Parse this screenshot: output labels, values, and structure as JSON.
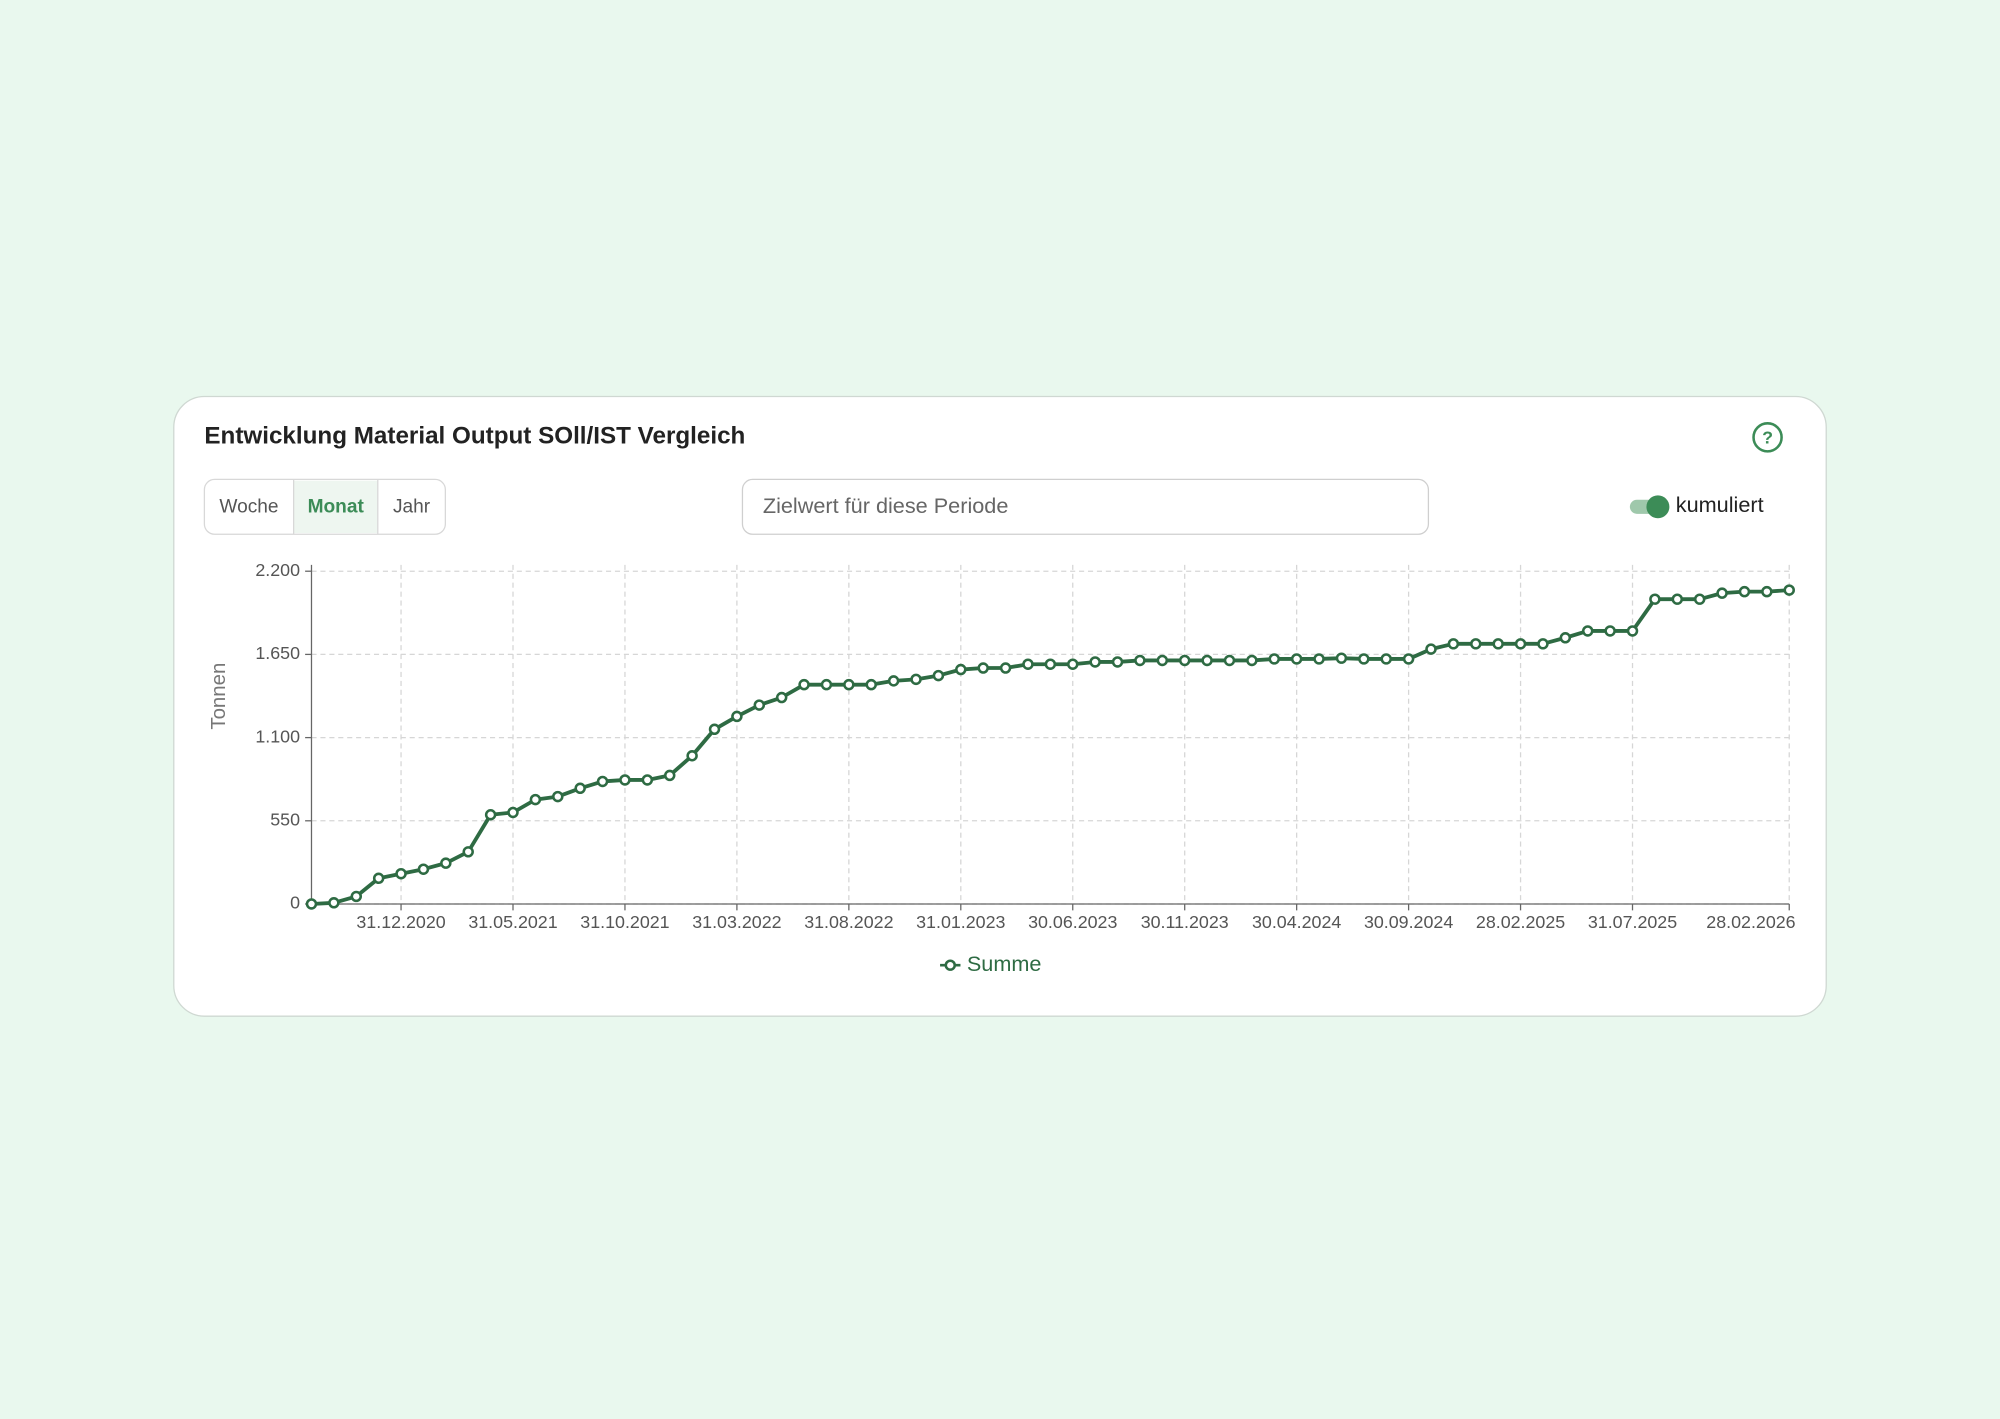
{
  "header": {
    "title": "Entwicklung Material Output SOll/IST Vergleich"
  },
  "period_buttons": {
    "items": [
      "Woche",
      "Monat",
      "Jahr"
    ],
    "active": 1
  },
  "target_input": {
    "placeholder": "Zielwert für diese Periode"
  },
  "toggle": {
    "label": "kumuliert",
    "on": true
  },
  "chart_data": {
    "type": "line",
    "ylabel": "Tonnen",
    "categories": [
      null,
      null,
      null,
      null,
      "31.12.2020",
      null,
      null,
      null,
      null,
      "31.05.2021",
      null,
      null,
      null,
      null,
      "31.10.2021",
      null,
      null,
      null,
      null,
      "31.03.2022",
      null,
      null,
      null,
      null,
      "31.08.2022",
      null,
      null,
      null,
      null,
      "31.01.2023",
      null,
      null,
      null,
      null,
      "30.06.2023",
      null,
      null,
      null,
      null,
      "30.11.2023",
      null,
      null,
      null,
      null,
      "30.04.2024",
      null,
      null,
      null,
      null,
      "30.09.2024",
      null,
      null,
      null,
      null,
      "28.02.2025",
      null,
      null,
      null,
      null,
      "31.07.2025",
      null,
      null,
      null,
      null,
      null,
      null,
      "28.02.2026"
    ],
    "series": [
      {
        "name": "Summe",
        "color": "#2e6b43",
        "values": [
          0,
          8,
          50,
          170,
          200,
          230,
          270,
          345,
          590,
          605,
          690,
          710,
          765,
          810,
          820,
          820,
          850,
          980,
          1155,
          1240,
          1315,
          1365,
          1450,
          1450,
          1450,
          1450,
          1475,
          1485,
          1510,
          1550,
          1560,
          1560,
          1585,
          1585,
          1585,
          1600,
          1600,
          1610,
          1610,
          1610,
          1610,
          1610,
          1610,
          1620,
          1620,
          1620,
          1625,
          1620,
          1620,
          1620,
          1685,
          1720,
          1720,
          1720,
          1720,
          1720,
          1760,
          1805,
          1805,
          1805,
          2015,
          2015,
          2015,
          2055,
          2065,
          2065,
          2075
        ]
      }
    ],
    "ylim": [
      0,
      2200
    ],
    "yticks": [
      0,
      550,
      {
        "value": 1100,
        "label": "1.100"
      },
      {
        "value": 1650,
        "label": "1.650"
      },
      {
        "value": 2200,
        "label": "2.200"
      }
    ],
    "grid": true,
    "legend": "bottom"
  }
}
